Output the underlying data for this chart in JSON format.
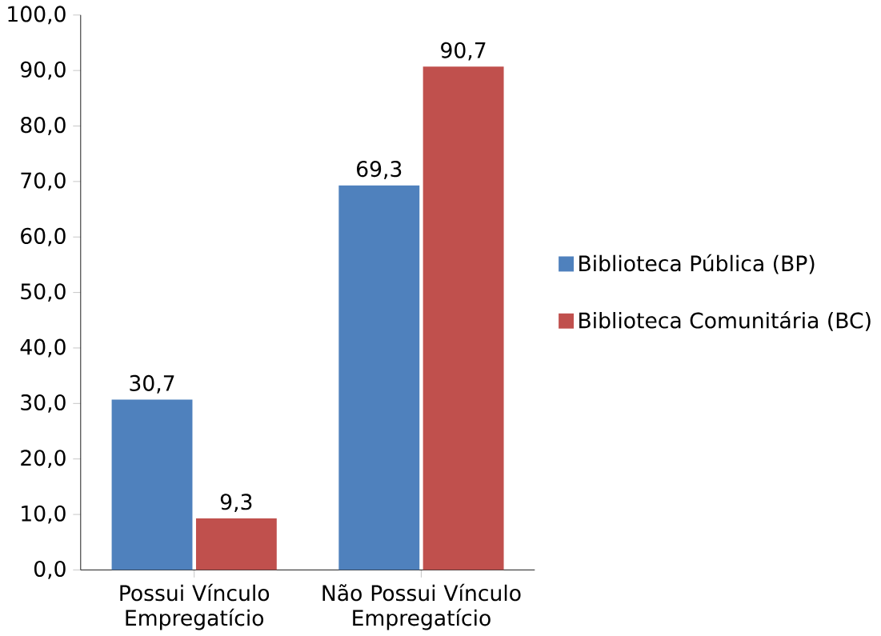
{
  "chart_data": {
    "type": "bar",
    "categories": [
      "Possui Vínculo Empregatício",
      "Não Possui Vínculo Empregatício"
    ],
    "series": [
      {
        "name": "Biblioteca Pública (BP)",
        "color": "#4f81bd",
        "values": [
          30.7,
          69.3
        ],
        "value_labels": [
          "30,7",
          "69,3"
        ]
      },
      {
        "name": "Biblioteca Comunitária (BC)",
        "color": "#c0504d",
        "values": [
          9.3,
          90.7
        ],
        "value_labels": [
          "9,3",
          "90,7"
        ]
      }
    ],
    "ylim": [
      0,
      100
    ],
    "yticks": [
      {
        "value": 0,
        "label": "0,0"
      },
      {
        "value": 10,
        "label": "10,0"
      },
      {
        "value": 20,
        "label": "20,0"
      },
      {
        "value": 30,
        "label": "30,0"
      },
      {
        "value": 40,
        "label": "40,0"
      },
      {
        "value": 50,
        "label": "50,0"
      },
      {
        "value": 60,
        "label": "60,0"
      },
      {
        "value": 70,
        "label": "70,0"
      },
      {
        "value": 80,
        "label": "80,0"
      },
      {
        "value": 90,
        "label": "90,0"
      },
      {
        "value": 100,
        "label": "100,0"
      }
    ],
    "legend": "right"
  }
}
